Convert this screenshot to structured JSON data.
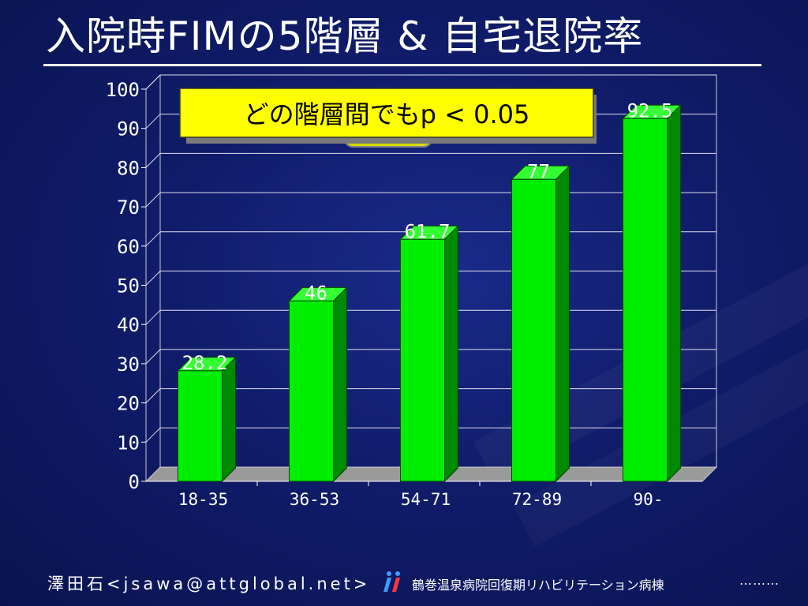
{
  "slide": {
    "title": "入院時FIMの5階層 & 自宅退院率"
  },
  "chart_data": {
    "type": "bar",
    "categories": [
      "18-35",
      "36-53",
      "54-71",
      "72-89",
      "90-"
    ],
    "values": [
      28.2,
      46,
      61.7,
      77,
      92.5
    ],
    "value_labels": [
      "28.2",
      "46",
      "61.7",
      "77",
      "92.5"
    ],
    "ylim": [
      0,
      100
    ],
    "yticks": [
      0,
      10,
      20,
      30,
      40,
      50,
      60,
      70,
      80,
      90,
      100
    ],
    "grid": true,
    "style": "3d",
    "bar_color": "#00ee00",
    "annotation": "どの階層間でもp < 0.05"
  },
  "footer": {
    "author": "澤田石<jsawa@attglobal.net>",
    "hospital": "鶴巻温泉病院回復期リハビリテーション病棟",
    "dots": "………"
  },
  "colors": {
    "background": "#101c6a",
    "bar_front": "#00ee00",
    "bar_side": "#008a00",
    "bar_top": "#33ff33",
    "annotation_fill": "#ffff00",
    "text": "#ffffff"
  }
}
